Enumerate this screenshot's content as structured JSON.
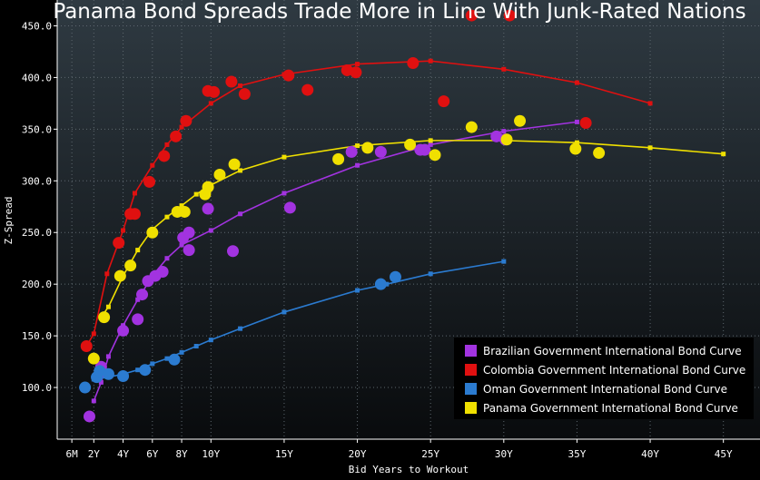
{
  "chart_data": {
    "type": "scatter",
    "title": "Panama Bond Spreads Trade More in Line With Junk-Rated Nations",
    "xlabel": "Bid Years to Workout",
    "ylabel": "Z-Spread",
    "xlim": [
      -0.5,
      47.5
    ],
    "ylim": [
      50,
      475
    ],
    "x_ticks": [
      {
        "value": 0.5,
        "label": "6M"
      },
      {
        "value": 2,
        "label": "2Y"
      },
      {
        "value": 4,
        "label": "4Y"
      },
      {
        "value": 6,
        "label": "6Y"
      },
      {
        "value": 8,
        "label": "8Y"
      },
      {
        "value": 10,
        "label": "10Y"
      },
      {
        "value": 15,
        "label": "15Y"
      },
      {
        "value": 20,
        "label": "20Y"
      },
      {
        "value": 25,
        "label": "25Y"
      },
      {
        "value": 30,
        "label": "30Y"
      },
      {
        "value": 35,
        "label": "35Y"
      },
      {
        "value": 40,
        "label": "40Y"
      },
      {
        "value": 45,
        "label": "45Y"
      }
    ],
    "y_ticks": [
      {
        "value": 100,
        "label": "100.0"
      },
      {
        "value": 150,
        "label": "150.0"
      },
      {
        "value": 200,
        "label": "200.0"
      },
      {
        "value": 250,
        "label": "250.0"
      },
      {
        "value": 300,
        "label": "300.0"
      },
      {
        "value": 350,
        "label": "350.0"
      },
      {
        "value": 400,
        "label": "400.0"
      },
      {
        "value": 450,
        "label": "450.0"
      }
    ],
    "grid": true,
    "legend_position": "bottom-right",
    "series": [
      {
        "name": "Brazilian Government International Bond Curve",
        "color": "#a233e0",
        "curve": [
          [
            2,
            87
          ],
          [
            2.5,
            105
          ],
          [
            3,
            130
          ],
          [
            4,
            160
          ],
          [
            5,
            185
          ],
          [
            6,
            208
          ],
          [
            7,
            225
          ],
          [
            8,
            238
          ],
          [
            10,
            252
          ],
          [
            12,
            268
          ],
          [
            15,
            288
          ],
          [
            20,
            315
          ],
          [
            25,
            335
          ],
          [
            30,
            348
          ],
          [
            35,
            357
          ]
        ],
        "points": [
          [
            1.7,
            72
          ],
          [
            2.5,
            120
          ],
          [
            4,
            155
          ],
          [
            5,
            166
          ],
          [
            5.3,
            190
          ],
          [
            5.7,
            203
          ],
          [
            6.2,
            208
          ],
          [
            6.7,
            212
          ],
          [
            8.1,
            245
          ],
          [
            8.5,
            250
          ],
          [
            8.5,
            233
          ],
          [
            9.8,
            273
          ],
          [
            11.5,
            232
          ],
          [
            15.4,
            274
          ],
          [
            19.6,
            328
          ],
          [
            21.6,
            328
          ],
          [
            24.3,
            330
          ],
          [
            24.6,
            330
          ],
          [
            29.5,
            343
          ],
          [
            30.1,
            340
          ]
        ]
      },
      {
        "name": "Colombia Government International Bond Curve",
        "color": "#e01010",
        "curve": [
          [
            1.5,
            140
          ],
          [
            2,
            152
          ],
          [
            2.9,
            210
          ],
          [
            4,
            252
          ],
          [
            4.8,
            288
          ],
          [
            6,
            315
          ],
          [
            7,
            335
          ],
          [
            8,
            352
          ],
          [
            10,
            375
          ],
          [
            12,
            392
          ],
          [
            15,
            403
          ],
          [
            20,
            413
          ],
          [
            25,
            416
          ],
          [
            30,
            408
          ],
          [
            35,
            395
          ],
          [
            40,
            375
          ]
        ],
        "points": [
          [
            1.5,
            140
          ],
          [
            3.7,
            240
          ],
          [
            4.5,
            268
          ],
          [
            4.8,
            268
          ],
          [
            5.8,
            299
          ],
          [
            6.8,
            324
          ],
          [
            7.6,
            343
          ],
          [
            8.3,
            358
          ],
          [
            9.8,
            387
          ],
          [
            10.2,
            386
          ],
          [
            11.4,
            396
          ],
          [
            12.3,
            384
          ],
          [
            15.3,
            402
          ],
          [
            16.6,
            388
          ],
          [
            19.3,
            407
          ],
          [
            19.9,
            405
          ],
          [
            23.8,
            414
          ],
          [
            25.9,
            377
          ],
          [
            27.8,
            460
          ],
          [
            30.4,
            460
          ],
          [
            35.6,
            356
          ]
        ]
      },
      {
        "name": "Oman Government International Bond Curve",
        "color": "#2b7bd0",
        "curve": [
          [
            2,
            108
          ],
          [
            3,
            110
          ],
          [
            4,
            113
          ],
          [
            5,
            117
          ],
          [
            6,
            123
          ],
          [
            7,
            128
          ],
          [
            8,
            134
          ],
          [
            9,
            140
          ],
          [
            10,
            146
          ],
          [
            12,
            157
          ],
          [
            15,
            173
          ],
          [
            20,
            194
          ],
          [
            22,
            200
          ],
          [
            25,
            210
          ],
          [
            30,
            222
          ]
        ],
        "points": [
          [
            1.4,
            100
          ],
          [
            2.2,
            110
          ],
          [
            2.4,
            116
          ],
          [
            3,
            113
          ],
          [
            4,
            111
          ],
          [
            5.5,
            117
          ],
          [
            7.5,
            127
          ],
          [
            21.6,
            200
          ],
          [
            22.6,
            207
          ]
        ]
      },
      {
        "name": "Panama Government International Bond Curve",
        "color": "#f0e000",
        "curve": [
          [
            2.5,
            168
          ],
          [
            3,
            178
          ],
          [
            4,
            208
          ],
          [
            5,
            233
          ],
          [
            6,
            253
          ],
          [
            7,
            265
          ],
          [
            8,
            276
          ],
          [
            9,
            287
          ],
          [
            10,
            296
          ],
          [
            12,
            310
          ],
          [
            15,
            323
          ],
          [
            20,
            334
          ],
          [
            25,
            339
          ],
          [
            30,
            339
          ],
          [
            35,
            337
          ],
          [
            40,
            332
          ],
          [
            45,
            326
          ]
        ],
        "points": [
          [
            2,
            128
          ],
          [
            2.7,
            168
          ],
          [
            3.8,
            208
          ],
          [
            4.5,
            218
          ],
          [
            6,
            250
          ],
          [
            7.7,
            270
          ],
          [
            8.2,
            270
          ],
          [
            9.6,
            287
          ],
          [
            9.8,
            294
          ],
          [
            10.6,
            306
          ],
          [
            11.6,
            316
          ],
          [
            18.7,
            321
          ],
          [
            20.7,
            332
          ],
          [
            23.6,
            335
          ],
          [
            25.3,
            325
          ],
          [
            27.8,
            352
          ],
          [
            30.2,
            340
          ],
          [
            31.1,
            358
          ],
          [
            34.9,
            331
          ],
          [
            36.5,
            327
          ]
        ]
      }
    ]
  }
}
